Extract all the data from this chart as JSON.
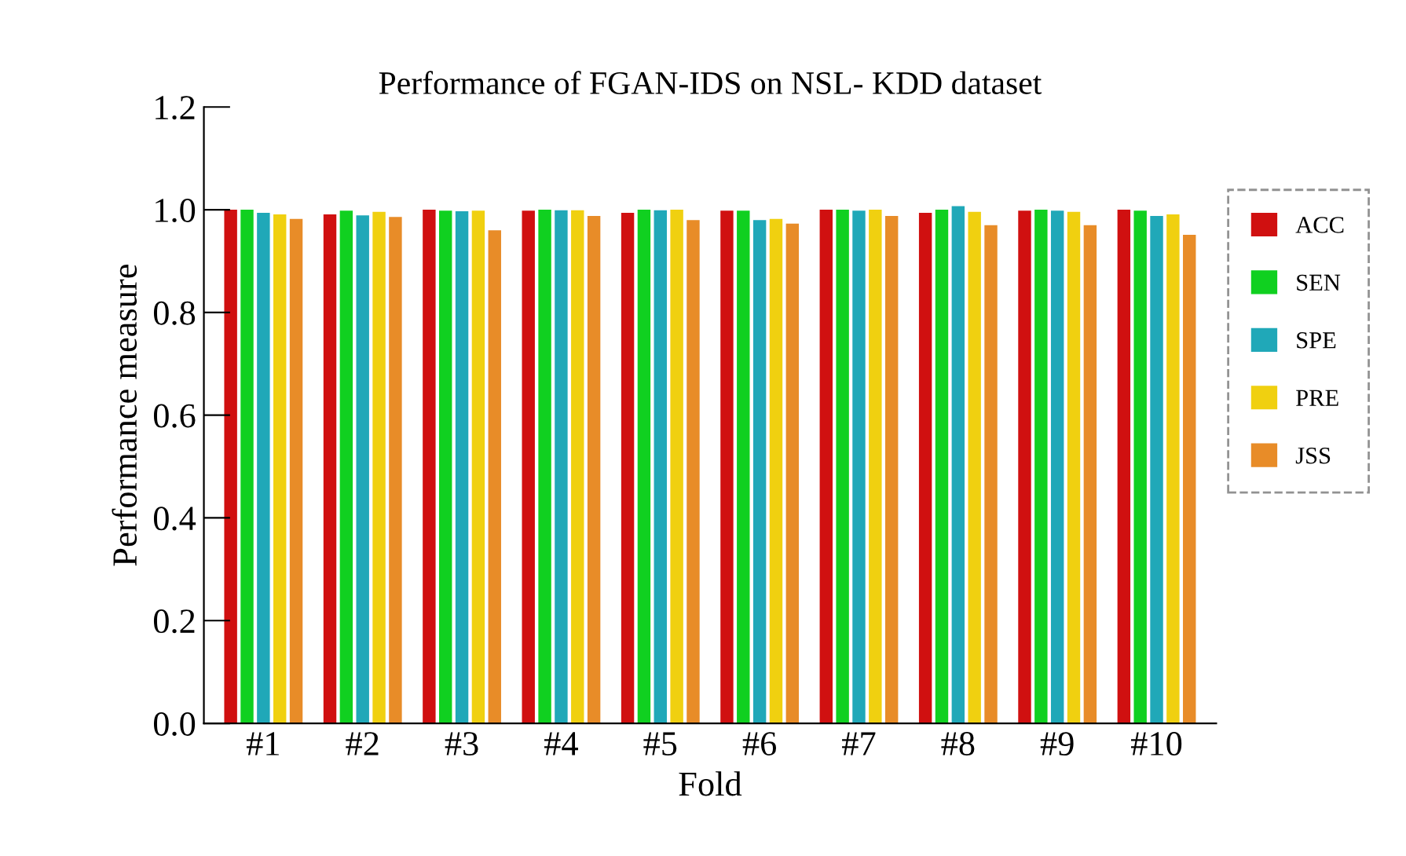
{
  "chart_data": {
    "type": "bar",
    "title": "Performance of FGAN-IDS on NSL- KDD dataset",
    "xlabel": "Fold",
    "ylabel": "Performance measure",
    "categories": [
      "#1",
      "#2",
      "#3",
      "#4",
      "#5",
      "#6",
      "#7",
      "#8",
      "#9",
      "#10"
    ],
    "series": [
      {
        "name": "ACC",
        "color": "#d01010",
        "values": [
          1.0,
          0.991,
          1.0,
          0.998,
          0.994,
          0.998,
          1.0,
          0.994,
          0.998,
          1.0
        ]
      },
      {
        "name": "SEN",
        "color": "#10d020",
        "values": [
          1.0,
          0.998,
          0.998,
          1.0,
          1.0,
          0.998,
          1.0,
          1.0,
          1.0,
          0.998
        ]
      },
      {
        "name": "SPE",
        "color": "#20a8b8",
        "values": [
          0.994,
          0.989,
          0.997,
          0.999,
          0.999,
          0.98,
          0.998,
          1.007,
          0.998,
          0.988
        ]
      },
      {
        "name": "PRE",
        "color": "#f0d010",
        "values": [
          0.991,
          0.996,
          0.998,
          0.999,
          1.0,
          0.982,
          1.0,
          0.996,
          0.996,
          0.991
        ]
      },
      {
        "name": "JSS",
        "color": "#e88c28",
        "values": [
          0.982,
          0.986,
          0.96,
          0.988,
          0.98,
          0.973,
          0.988,
          0.97,
          0.97,
          0.951
        ]
      }
    ],
    "ylim": [
      0,
      1.2
    ],
    "yticks": [
      {
        "value": 0,
        "label": "0.0"
      },
      0.2,
      0.4,
      0.6,
      0.8,
      {
        "value": 1,
        "label": "1.0"
      },
      1.2
    ],
    "grid": false,
    "legend": "right"
  }
}
